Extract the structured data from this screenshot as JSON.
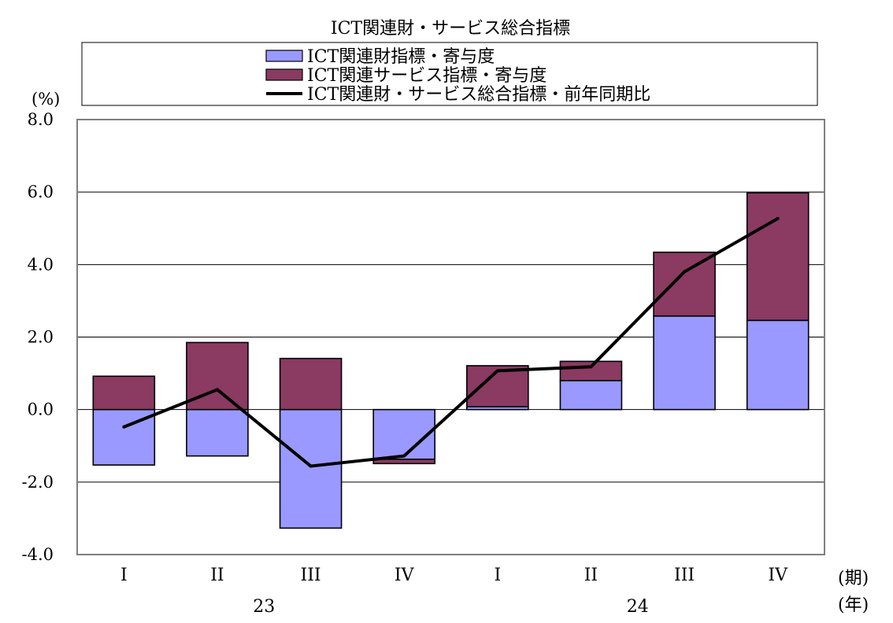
{
  "chart_data": {
    "type": "bar",
    "stacked": true,
    "title": "ICT関連財・サービス総合指標",
    "y_unit_label": "(%)",
    "ylim": [
      -4.0,
      8.0
    ],
    "yticks": [
      "8.0",
      "6.0",
      "4.0",
      "2.0",
      "0.0",
      "-2.0",
      "-4.0"
    ],
    "ytick_values": [
      8.0,
      6.0,
      4.0,
      2.0,
      0.0,
      -2.0,
      -4.0
    ],
    "categories": [
      "I",
      "II",
      "III",
      "IV",
      "I",
      "II",
      "III",
      "IV"
    ],
    "x_period_label": "(期)",
    "years": [
      {
        "label": "23",
        "span": [
          0,
          3
        ]
      },
      {
        "label": "24",
        "span": [
          4,
          7
        ]
      }
    ],
    "x_year_label": "(年)",
    "grid": true,
    "legend_position": "top",
    "series": [
      {
        "name": "ICT関連財指標・寄与度",
        "kind": "bar",
        "color": "#9999ff",
        "values": [
          -1.53,
          -1.28,
          -3.27,
          -1.37,
          0.08,
          0.8,
          2.58,
          2.46
        ]
      },
      {
        "name": "ICT関連サービス指標・寄与度",
        "kind": "bar",
        "color": "#8b3a62",
        "values": [
          0.92,
          1.85,
          1.41,
          -0.12,
          1.13,
          0.53,
          1.76,
          3.52
        ]
      },
      {
        "name": "ICT関連財・サービス総合指標・前年同期比",
        "kind": "line",
        "color": "#000000",
        "values": [
          -0.48,
          0.55,
          -1.56,
          -1.28,
          1.07,
          1.18,
          3.8,
          5.27
        ]
      }
    ]
  }
}
